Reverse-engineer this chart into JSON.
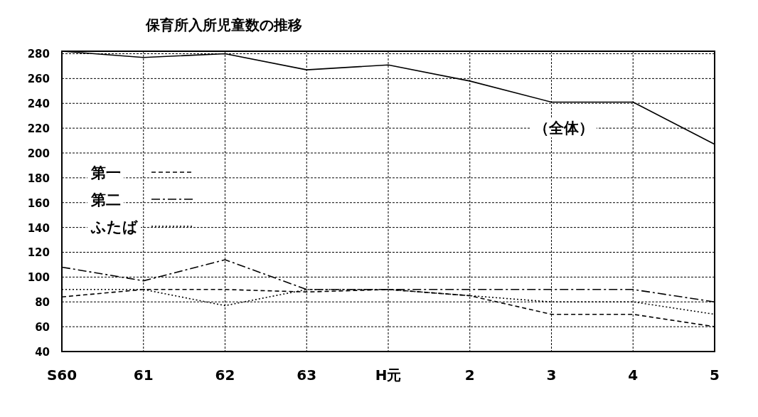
{
  "chart_data": {
    "type": "line",
    "title": "保育所入所児童数の推移",
    "categories": [
      "S60",
      "61",
      "62",
      "63",
      "H元",
      "2",
      "3",
      "4",
      "5"
    ],
    "series": [
      {
        "color": "#000000",
        "line_style": "solid",
        "values": [
          282,
          277,
          280,
          267,
          271,
          258,
          241,
          241,
          207
        ]
      },
      {
        "name": "第一",
        "color": "#000000",
        "line_style": "dashed",
        "values": [
          84,
          90,
          90,
          88,
          90,
          85,
          70,
          70,
          60
        ]
      },
      {
        "name": "第二",
        "color": "#000000",
        "line_style": "dashdot",
        "values": [
          108,
          97,
          114,
          90,
          90,
          90,
          90,
          90,
          80
        ]
      },
      {
        "name": "ふたば",
        "color": "#000000",
        "line_style": "dotted",
        "values": [
          90,
          90,
          77,
          90,
          90,
          85,
          80,
          80,
          70
        ]
      }
    ],
    "ylim": [
      40,
      282
    ],
    "yticks": [
      40,
      60,
      80,
      100,
      120,
      140,
      160,
      180,
      200,
      220,
      240,
      260,
      280
    ],
    "annotations": [
      "（全体）"
    ],
    "grid": true,
    "legend": "left",
    "marker": "none"
  }
}
